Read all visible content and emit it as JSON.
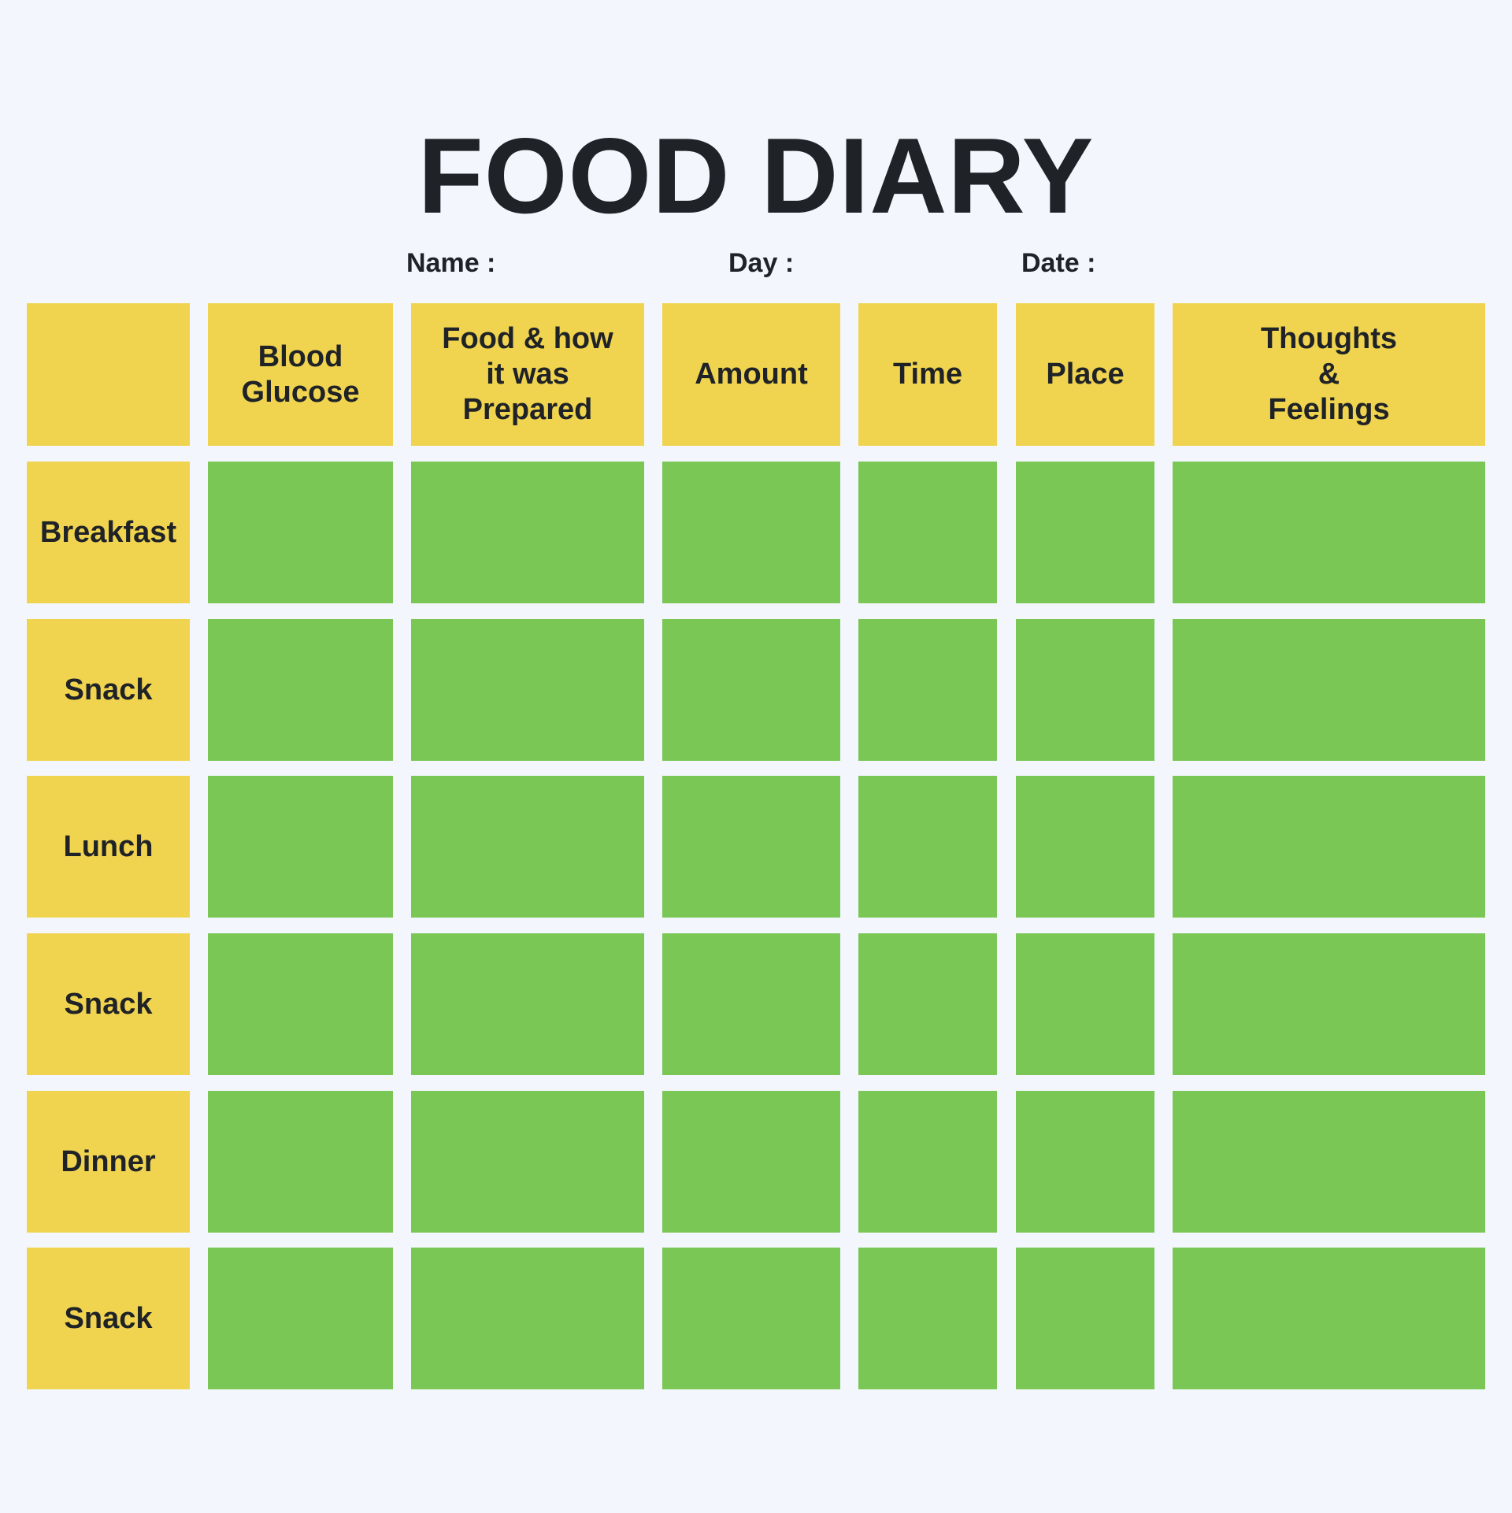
{
  "title": "FOOD DIARY",
  "fields": {
    "name_label": "Name :",
    "day_label": "Day :",
    "date_label": "Date :"
  },
  "table": {
    "columns": [
      "",
      "Blood\nGlucose",
      "Food & how\nit was\nPrepared",
      "Amount",
      "Time",
      "Place",
      "Thoughts\n&\nFeelings"
    ],
    "rows": [
      "Breakfast",
      "Snack",
      "Lunch",
      "Snack",
      "Dinner",
      "Snack"
    ]
  },
  "colors": {
    "background": "#f3f7fd",
    "header_fill": "#f0d44f",
    "entry_fill": "#7ac756",
    "text": "#1f2227"
  }
}
